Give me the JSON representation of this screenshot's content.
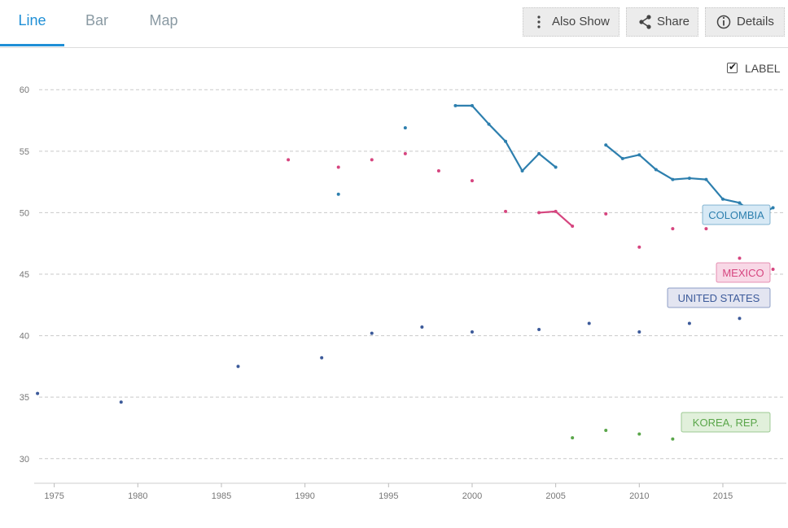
{
  "tabs": [
    {
      "label": "Line",
      "active": true
    },
    {
      "label": "Bar",
      "active": false
    },
    {
      "label": "Map",
      "active": false
    }
  ],
  "toolbar": {
    "also_show_label": "Also Show",
    "share_label": "Share",
    "details_label": "Details"
  },
  "label_toggle": {
    "text": "LABEL",
    "checked": true
  },
  "chart_data": {
    "type": "line",
    "title": "",
    "xlabel": "",
    "ylabel": "",
    "xlim": [
      1973.8,
      2018.8
    ],
    "ylim": [
      28,
      62
    ],
    "x_ticks": [
      1975,
      1980,
      1985,
      1990,
      1995,
      2000,
      2005,
      2010,
      2015
    ],
    "y_ticks": [
      30,
      35,
      40,
      45,
      50,
      55,
      60
    ],
    "grid": "horizontal dashed",
    "series": [
      {
        "name": "COLOMBIA",
        "color": "#2d7fae",
        "label_color_bg": "#d7e9f5",
        "points": [
          [
            1992,
            51.5
          ],
          [
            1996,
            56.9
          ],
          [
            1999,
            58.7
          ],
          [
            2000,
            58.7
          ],
          [
            2001,
            57.2
          ],
          [
            2002,
            55.8
          ],
          [
            2003,
            53.4
          ],
          [
            2004,
            54.8
          ],
          [
            2005,
            53.7
          ],
          [
            2008,
            55.5
          ],
          [
            2009,
            54.4
          ],
          [
            2010,
            54.7
          ],
          [
            2011,
            53.5
          ],
          [
            2012,
            52.7
          ],
          [
            2013,
            52.8
          ],
          [
            2014,
            52.7
          ],
          [
            2015,
            51.1
          ],
          [
            2016,
            50.8
          ],
          [
            2017,
            49.7
          ],
          [
            2018,
            50.4
          ]
        ]
      },
      {
        "name": "MEXICO",
        "color": "#d6457f",
        "label_color_bg": "#f8d8e6",
        "points": [
          [
            1989,
            54.3
          ],
          [
            1992,
            53.7
          ],
          [
            1994,
            54.3
          ],
          [
            1996,
            54.8
          ],
          [
            1998,
            53.4
          ],
          [
            2000,
            52.6
          ],
          [
            2002,
            50.1
          ],
          [
            2004,
            50.0
          ],
          [
            2005,
            50.1
          ],
          [
            2006,
            48.9
          ],
          [
            2008,
            49.9
          ],
          [
            2010,
            47.2
          ],
          [
            2012,
            48.7
          ],
          [
            2014,
            48.7
          ],
          [
            2016,
            46.3
          ],
          [
            2018,
            45.4
          ]
        ]
      },
      {
        "name": "UNITED STATES",
        "color": "#3c5a9a",
        "label_color_bg": "#e3e5f1",
        "points": [
          [
            1974,
            35.3
          ],
          [
            1979,
            34.6
          ],
          [
            1986,
            37.5
          ],
          [
            1991,
            38.2
          ],
          [
            1994,
            40.2
          ],
          [
            1997,
            40.7
          ],
          [
            2000,
            40.3
          ],
          [
            2004,
            40.5
          ],
          [
            2007,
            41.0
          ],
          [
            2010,
            40.3
          ],
          [
            2013,
            41.0
          ],
          [
            2016,
            41.4
          ]
        ]
      },
      {
        "name": "KOREA, REP.",
        "color": "#5aa64a",
        "label_color_bg": "#e1f0db",
        "points": [
          [
            2006,
            31.7
          ],
          [
            2008,
            32.3
          ],
          [
            2010,
            32.0
          ],
          [
            2012,
            31.6
          ]
        ]
      }
    ]
  }
}
